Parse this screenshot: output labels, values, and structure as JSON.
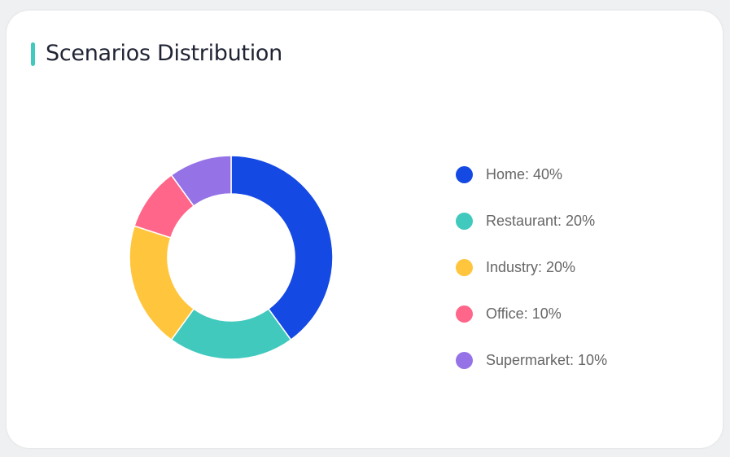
{
  "title": "Scenarios Distribution",
  "accent": "#41c9be",
  "chart_data": {
    "type": "pie",
    "donut": true,
    "title": "Scenarios Distribution",
    "legend_position": "right",
    "categories": [
      "Home",
      "Restaurant",
      "Industry",
      "Office",
      "Supermarket"
    ],
    "values": [
      40,
      20,
      20,
      10,
      10
    ],
    "colors": [
      "#1549e3",
      "#41c9be",
      "#ffc53d",
      "#ff6689",
      "#9573e6"
    ],
    "legend_labels": [
      "Home: 40%",
      "Restaurant: 20%",
      "Industry: 20%",
      "Office: 10%",
      "Supermarket: 10%"
    ]
  }
}
